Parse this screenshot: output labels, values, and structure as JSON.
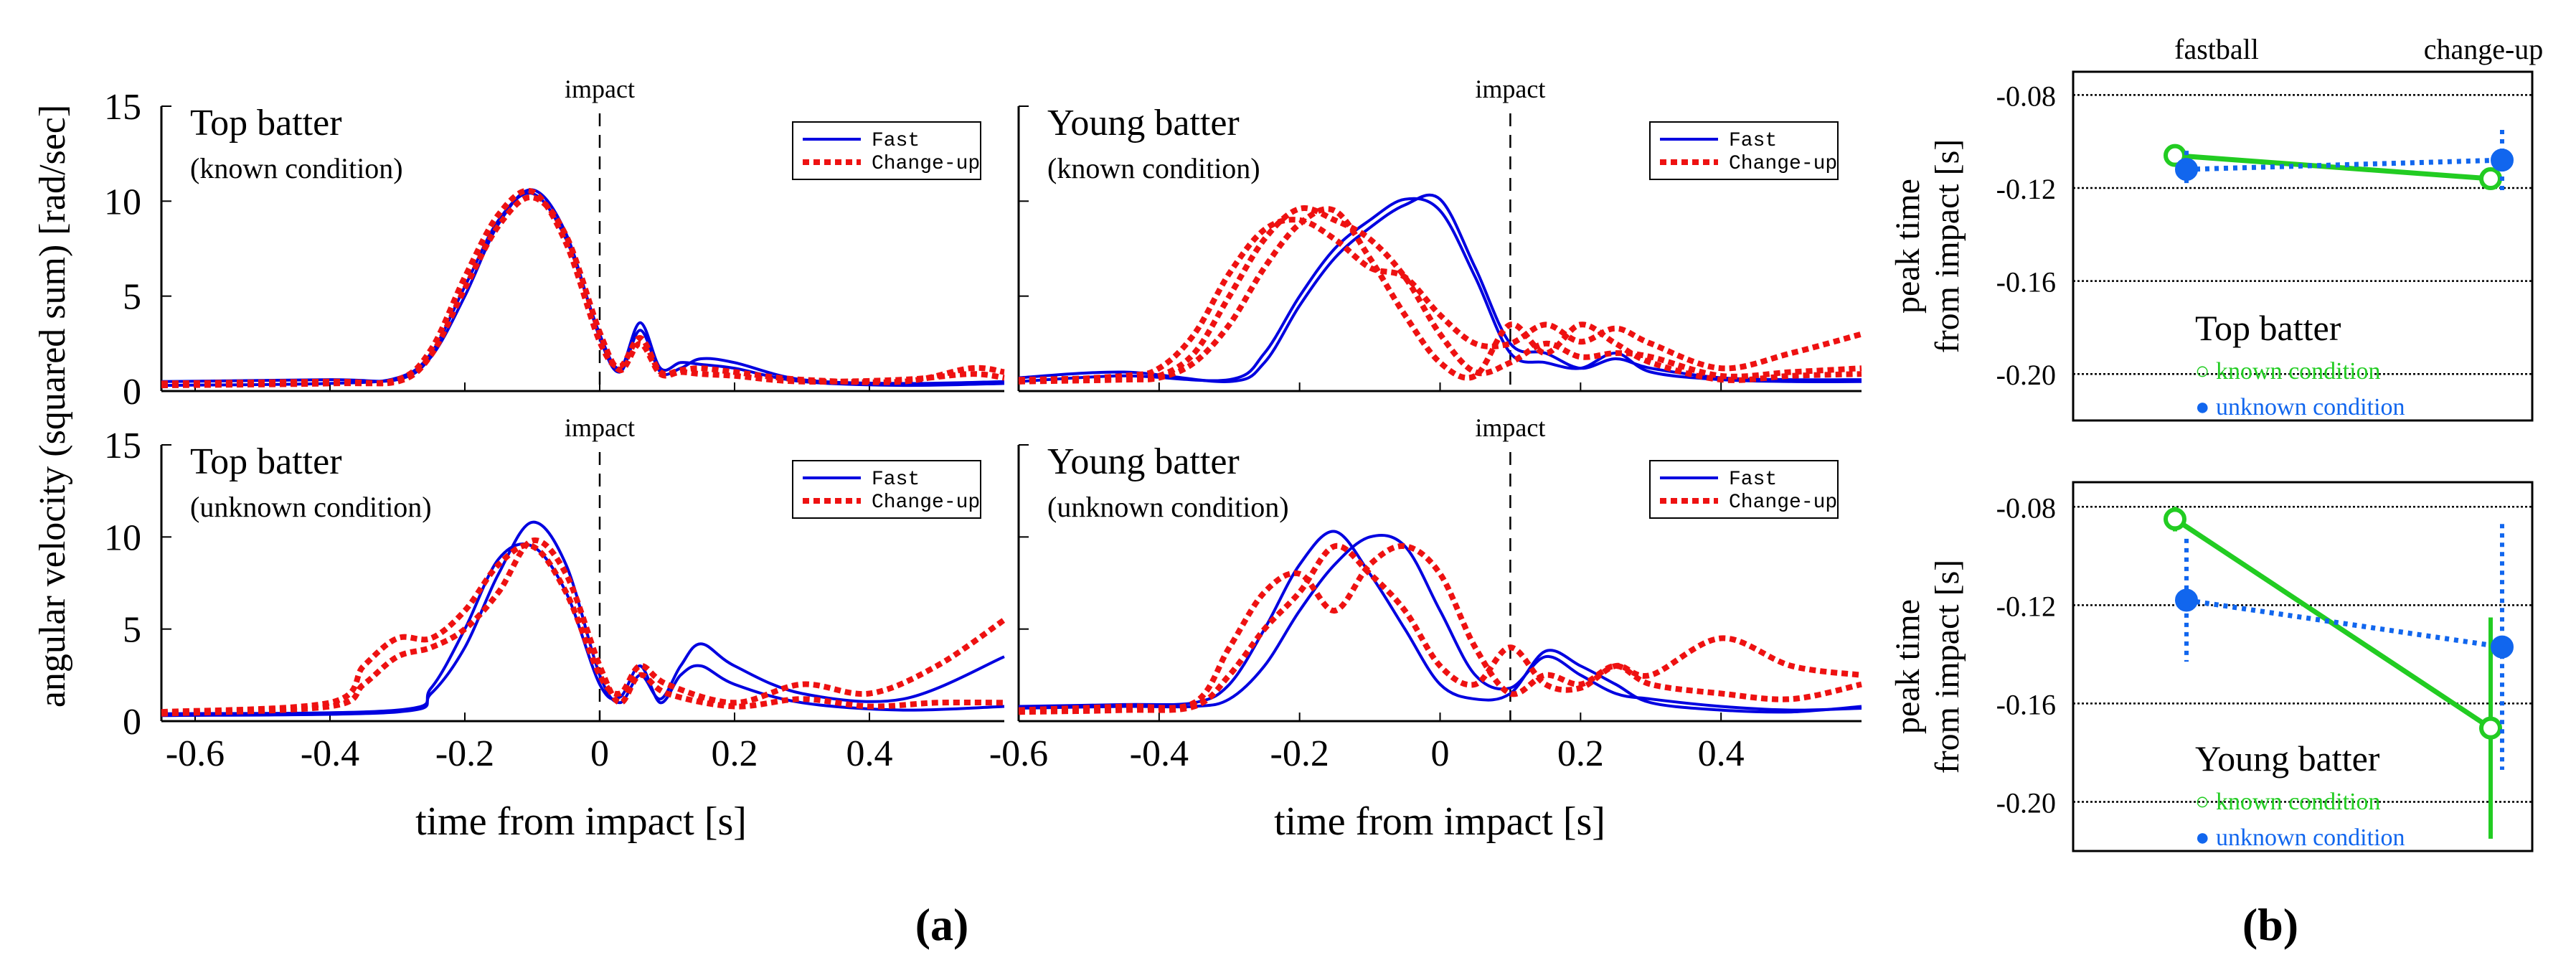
{
  "figure": {
    "xlabel": "time from impact [s]",
    "ylabel": "angular velocity (squared sum) [rad/sec]",
    "impact_label": "impact",
    "legend_fast": "Fast",
    "legend_changeup": "Change-up",
    "panel_a_label": "(a)",
    "panel_b_label": "(b)",
    "colors": {
      "fast": "#0000e0",
      "changeup": "#ee1111",
      "known": "#22cc22",
      "unknown": "#1166ee"
    }
  },
  "chart_data": [
    {
      "type": "line",
      "title": "Top batter",
      "subtitle": "(known condition)",
      "xlabel": "time from impact [s]",
      "ylabel": "angular velocity (squared sum) [rad/sec]",
      "xlim": [
        -0.65,
        0.6
      ],
      "ylim": [
        0,
        15
      ],
      "xticks": [
        -0.6,
        -0.4,
        -0.2,
        0,
        0.2,
        0.4
      ],
      "yticks": [
        0,
        5,
        10,
        15
      ],
      "impact_x": 0,
      "legend": [
        "Fast",
        "Change-up"
      ],
      "series": [
        {
          "name": "Fast",
          "style": "solid",
          "x": [
            -0.65,
            -0.4,
            -0.3,
            -0.25,
            -0.2,
            -0.15,
            -0.1,
            -0.05,
            0,
            0.03,
            0.06,
            0.09,
            0.12,
            0.15,
            0.2,
            0.3,
            0.45,
            0.6
          ],
          "y": [
            0.3,
            0.4,
            0.7,
            2,
            5.5,
            9,
            10.4,
            8,
            3,
            1.2,
            3.6,
            1.2,
            1.5,
            1.4,
            1.2,
            0.5,
            0.3,
            0.4
          ]
        },
        {
          "name": "Fast",
          "style": "solid",
          "x": [
            -0.65,
            -0.4,
            -0.3,
            -0.25,
            -0.2,
            -0.15,
            -0.1,
            -0.05,
            0,
            0.03,
            0.06,
            0.09,
            0.12,
            0.15,
            0.2,
            0.3,
            0.45,
            0.6
          ],
          "y": [
            0.5,
            0.6,
            0.6,
            1.8,
            5,
            8.8,
            10.6,
            8.3,
            2.8,
            1.0,
            3.2,
            1.0,
            1.2,
            1.7,
            1.5,
            0.6,
            0.4,
            0.5
          ]
        },
        {
          "name": "Change-up",
          "style": "dashed",
          "x": [
            -0.65,
            -0.4,
            -0.3,
            -0.25,
            -0.2,
            -0.15,
            -0.1,
            -0.05,
            0,
            0.03,
            0.06,
            0.09,
            0.12,
            0.15,
            0.2,
            0.3,
            0.45,
            0.55,
            0.6
          ],
          "y": [
            0.3,
            0.4,
            0.6,
            2.2,
            6,
            9.3,
            10.5,
            7.8,
            2.6,
            1.3,
            2.8,
            1.0,
            1.1,
            1.2,
            1.0,
            0.6,
            0.5,
            1.2,
            1.0
          ]
        },
        {
          "name": "Change-up",
          "style": "dashed",
          "x": [
            -0.65,
            -0.4,
            -0.3,
            -0.25,
            -0.2,
            -0.15,
            -0.1,
            -0.05,
            0,
            0.03,
            0.06,
            0.09,
            0.12,
            0.15,
            0.2,
            0.3,
            0.45,
            0.55,
            0.6
          ],
          "y": [
            0.4,
            0.5,
            0.5,
            1.9,
            5.4,
            8.7,
            10.2,
            8.2,
            3.1,
            1.1,
            2.5,
            0.9,
            1.0,
            0.9,
            0.8,
            0.5,
            0.6,
            0.9,
            0.7
          ]
        }
      ]
    },
    {
      "type": "line",
      "title": "Young batter",
      "subtitle": "(known condition)",
      "xlabel": "time from impact [s]",
      "xlim": [
        -0.6,
        0.6
      ],
      "ylim": [
        0,
        15
      ],
      "xticks": [
        -0.6,
        -0.4,
        -0.2,
        0,
        0.2,
        0.4
      ],
      "yticks": [
        0,
        5,
        10,
        15
      ],
      "impact_x": 0.1,
      "legend": [
        "Fast",
        "Change-up"
      ],
      "series": [
        {
          "name": "Fast",
          "style": "solid",
          "x": [
            -0.6,
            -0.45,
            -0.3,
            -0.25,
            -0.2,
            -0.15,
            -0.1,
            -0.05,
            0,
            0.05,
            0.1,
            0.15,
            0.2,
            0.25,
            0.3,
            0.4,
            0.5,
            0.6
          ],
          "y": [
            0.5,
            0.8,
            0.6,
            2,
            5,
            7.5,
            9,
            10.1,
            9.5,
            6,
            2,
            1.5,
            1.2,
            2,
            1,
            0.6,
            0.5,
            0.5
          ]
        },
        {
          "name": "Fast",
          "style": "solid",
          "x": [
            -0.6,
            -0.45,
            -0.3,
            -0.25,
            -0.2,
            -0.15,
            -0.1,
            -0.05,
            0,
            0.05,
            0.1,
            0.15,
            0.2,
            0.25,
            0.3,
            0.4,
            0.5,
            0.6
          ],
          "y": [
            0.7,
            1.0,
            0.5,
            1.5,
            4.5,
            7,
            8.6,
            9.8,
            10.1,
            6.5,
            2.5,
            2,
            1.2,
            1.7,
            1.2,
            0.7,
            0.6,
            0.6
          ]
        },
        {
          "name": "Change-up",
          "style": "dashed",
          "x": [
            -0.6,
            -0.45,
            -0.4,
            -0.35,
            -0.3,
            -0.25,
            -0.2,
            -0.15,
            -0.1,
            -0.05,
            0,
            0.05,
            0.1,
            0.15,
            0.2,
            0.25,
            0.3,
            0.4,
            0.5,
            0.6
          ],
          "y": [
            0.5,
            0.8,
            1.2,
            3,
            6.2,
            8.5,
            9,
            8,
            6.5,
            6,
            4,
            2.5,
            2.5,
            3.5,
            2.6,
            3.3,
            2.5,
            1.2,
            2,
            3
          ]
        },
        {
          "name": "Change-up",
          "style": "dashed",
          "x": [
            -0.6,
            -0.45,
            -0.4,
            -0.35,
            -0.3,
            -0.25,
            -0.2,
            -0.15,
            -0.1,
            -0.05,
            0,
            0.05,
            0.1,
            0.15,
            0.2,
            0.25,
            0.3,
            0.4,
            0.5,
            0.6
          ],
          "y": [
            0.6,
            0.7,
            0.8,
            2,
            5,
            8,
            9.6,
            9,
            8,
            6,
            3,
            1,
            1.5,
            2.5,
            1.8,
            2,
            1.8,
            0.8,
            1,
            1.2
          ]
        },
        {
          "name": "Change-up",
          "style": "dashed",
          "x": [
            -0.6,
            -0.45,
            -0.4,
            -0.35,
            -0.3,
            -0.25,
            -0.2,
            -0.15,
            -0.1,
            -0.05,
            0,
            0.05,
            0.1,
            0.15,
            0.2,
            0.25,
            0.3,
            0.4,
            0.5,
            0.6
          ],
          "y": [
            0.5,
            0.6,
            0.7,
            1.5,
            3.5,
            6.5,
            8.8,
            9.5,
            7,
            4,
            1.5,
            0.8,
            3.5,
            2,
            3.5,
            2.5,
            1.5,
            0.6,
            0.8,
            0.9
          ]
        }
      ]
    },
    {
      "type": "line",
      "title": "Top batter",
      "subtitle": "(unknown condition)",
      "xlabel": "time from impact [s]",
      "ylabel": "angular velocity (squared sum) [rad/sec]",
      "xlim": [
        -0.65,
        0.6
      ],
      "ylim": [
        0,
        15
      ],
      "xticks": [
        -0.6,
        -0.4,
        -0.2,
        0,
        0.2,
        0.4
      ],
      "yticks": [
        0,
        5,
        10,
        15
      ],
      "impact_x": 0,
      "legend": [
        "Fast",
        "Change-up"
      ],
      "series": [
        {
          "name": "Fast",
          "style": "solid",
          "x": [
            -0.65,
            -0.3,
            -0.25,
            -0.2,
            -0.15,
            -0.1,
            -0.05,
            0,
            0.03,
            0.06,
            0.09,
            0.12,
            0.15,
            0.2,
            0.3,
            0.45,
            0.6
          ],
          "y": [
            0.3,
            0.5,
            1.5,
            4,
            8,
            10.8,
            8.5,
            2.5,
            1.0,
            2.5,
            1.2,
            3,
            4.2,
            3,
            1.5,
            1.2,
            3.5
          ]
        },
        {
          "name": "Fast",
          "style": "solid",
          "x": [
            -0.65,
            -0.3,
            -0.25,
            -0.2,
            -0.15,
            -0.1,
            -0.05,
            0,
            0.03,
            0.06,
            0.09,
            0.12,
            0.15,
            0.2,
            0.3,
            0.45,
            0.6
          ],
          "y": [
            0.4,
            0.6,
            1.8,
            5,
            8.8,
            9.5,
            7,
            2,
            1.3,
            3,
            1,
            2.5,
            3,
            2,
            1,
            0.6,
            0.8
          ]
        },
        {
          "name": "Change-up",
          "style": "dashed",
          "x": [
            -0.65,
            -0.4,
            -0.35,
            -0.3,
            -0.25,
            -0.2,
            -0.15,
            -0.1,
            -0.05,
            0,
            0.03,
            0.06,
            0.1,
            0.2,
            0.3,
            0.4,
            0.5,
            0.6
          ],
          "y": [
            0.5,
            1,
            3,
            4.5,
            4.5,
            6,
            8.5,
            9.5,
            7,
            2.5,
            1.5,
            3,
            2,
            1,
            2,
            1.5,
            3,
            5.5
          ]
        },
        {
          "name": "Change-up",
          "style": "dashed",
          "x": [
            -0.65,
            -0.4,
            -0.35,
            -0.3,
            -0.25,
            -0.2,
            -0.15,
            -0.1,
            -0.05,
            0,
            0.03,
            0.06,
            0.1,
            0.2,
            0.3,
            0.4,
            0.5,
            0.6
          ],
          "y": [
            0.4,
            0.8,
            2,
            3.5,
            4,
            5,
            7,
            9.8,
            8,
            3,
            1,
            2.5,
            1.5,
            0.8,
            1.2,
            0.8,
            1,
            1
          ]
        }
      ]
    },
    {
      "type": "line",
      "title": "Young batter",
      "subtitle": "(unknown condition)",
      "xlabel": "time from impact [s]",
      "xlim": [
        -0.6,
        0.6
      ],
      "ylim": [
        0,
        15
      ],
      "xticks": [
        -0.6,
        -0.4,
        -0.2,
        0,
        0.2,
        0.4
      ],
      "yticks": [
        0,
        5,
        10,
        15
      ],
      "impact_x": 0.1,
      "legend": [
        "Fast",
        "Change-up"
      ],
      "series": [
        {
          "name": "Fast",
          "style": "solid",
          "x": [
            -0.6,
            -0.45,
            -0.35,
            -0.3,
            -0.25,
            -0.2,
            -0.15,
            -0.1,
            -0.05,
            0,
            0.05,
            0.1,
            0.15,
            0.2,
            0.25,
            0.3,
            0.4,
            0.5,
            0.6
          ],
          "y": [
            0.8,
            0.9,
            1,
            2,
            5,
            8.5,
            10.3,
            8,
            5,
            2,
            1.2,
            1.5,
            3.8,
            3,
            2,
            1,
            0.6,
            0.5,
            0.8
          ]
        },
        {
          "name": "Fast",
          "style": "solid",
          "x": [
            -0.6,
            -0.45,
            -0.35,
            -0.3,
            -0.25,
            -0.2,
            -0.15,
            -0.1,
            -0.05,
            0,
            0.05,
            0.1,
            0.15,
            0.2,
            0.25,
            0.3,
            0.4,
            0.5,
            0.6
          ],
          "y": [
            0.7,
            0.8,
            0.8,
            1.2,
            3,
            6,
            8.5,
            10,
            9.5,
            6,
            2.5,
            1.8,
            3.5,
            2.5,
            1.5,
            1.2,
            0.8,
            0.6,
            0.7
          ]
        },
        {
          "name": "Change-up",
          "style": "dashed",
          "x": [
            -0.6,
            -0.45,
            -0.35,
            -0.3,
            -0.25,
            -0.2,
            -0.15,
            -0.1,
            -0.05,
            0,
            0.05,
            0.1,
            0.15,
            0.2,
            0.25,
            0.3,
            0.4,
            0.5,
            0.6
          ],
          "y": [
            0.6,
            0.8,
            1,
            4,
            7,
            8,
            6,
            8.5,
            9.5,
            8,
            4,
            1.5,
            2.5,
            2,
            3,
            2,
            1.5,
            1.2,
            2
          ]
        },
        {
          "name": "Change-up",
          "style": "dashed",
          "x": [
            -0.6,
            -0.45,
            -0.35,
            -0.3,
            -0.25,
            -0.2,
            -0.15,
            -0.1,
            -0.05,
            0,
            0.05,
            0.1,
            0.15,
            0.2,
            0.25,
            0.3,
            0.4,
            0.5,
            0.6
          ],
          "y": [
            0.5,
            0.6,
            0.8,
            2.5,
            5,
            7,
            9.5,
            8,
            6,
            3,
            2,
            4,
            2,
            1.8,
            3,
            2.5,
            4.5,
            3,
            2.5
          ]
        }
      ]
    },
    {
      "type": "line",
      "title": "Top batter",
      "ylabel": "peak time from impact [s]",
      "categories": [
        "fastball",
        "change-up"
      ],
      "ylim": [
        -0.22,
        -0.07
      ],
      "yticks": [
        -0.08,
        -0.12,
        -0.16,
        -0.2
      ],
      "ytick_labels": [
        "-0.08",
        "-0.12",
        "-0.16",
        "-0.20"
      ],
      "legend": [
        "known condition",
        "unknown condition"
      ],
      "series": [
        {
          "name": "known condition",
          "marker": "open-circle",
          "style": "solid",
          "values": [
            -0.106,
            -0.116
          ],
          "err": [
            0.004,
            0.003
          ]
        },
        {
          "name": "unknown condition",
          "marker": "filled-circle",
          "style": "dotted",
          "values": [
            -0.112,
            -0.108
          ],
          "err": [
            0.008,
            0.013
          ]
        }
      ]
    },
    {
      "type": "line",
      "title": "Young batter",
      "ylabel": "peak time from impact [s]",
      "categories": [
        "fastball",
        "change-up"
      ],
      "ylim": [
        -0.22,
        -0.07
      ],
      "yticks": [
        -0.08,
        -0.12,
        -0.16,
        -0.2
      ],
      "ytick_labels": [
        "-0.08",
        "-0.12",
        "-0.16",
        "-0.20"
      ],
      "legend": [
        "known condition",
        "unknown condition"
      ],
      "series": [
        {
          "name": "known condition",
          "marker": "open-circle",
          "style": "solid",
          "values": [
            -0.085,
            -0.17
          ],
          "err": [
            0.005,
            0.045
          ]
        },
        {
          "name": "unknown condition",
          "marker": "filled-circle",
          "style": "dotted",
          "values": [
            -0.118,
            -0.137
          ],
          "err": [
            0.025,
            0.05
          ]
        }
      ]
    }
  ]
}
